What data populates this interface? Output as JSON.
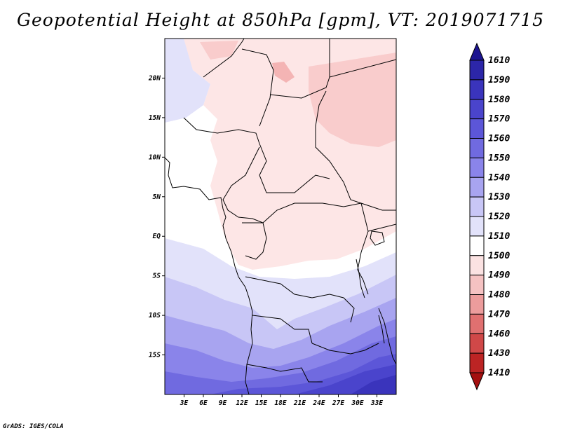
{
  "title": "Geopotential Height at 850hPa [gpm], VT: 2019071715",
  "credit": "GrADS: IGES/COLA",
  "map": {
    "lon_range": [
      0,
      36
    ],
    "lat_range": [
      -20,
      25
    ],
    "lat_ticks": [
      {
        "lat": 20,
        "label": "20N"
      },
      {
        "lat": 15,
        "label": "15N"
      },
      {
        "lat": 10,
        "label": "10N"
      },
      {
        "lat": 5,
        "label": "5N"
      },
      {
        "lat": 0,
        "label": "EQ"
      },
      {
        "lat": -5,
        "label": "5S"
      },
      {
        "lat": -10,
        "label": "10S"
      },
      {
        "lat": -15,
        "label": "15S"
      }
    ],
    "lon_ticks": [
      {
        "lon": 3,
        "label": "3E"
      },
      {
        "lon": 6,
        "label": "6E"
      },
      {
        "lon": 9,
        "label": "9E"
      },
      {
        "lon": 12,
        "label": "12E"
      },
      {
        "lon": 15,
        "label": "15E"
      },
      {
        "lon": 18,
        "label": "18E"
      },
      {
        "lon": 21,
        "label": "21E"
      },
      {
        "lon": 24,
        "label": "24E"
      },
      {
        "lon": 27,
        "label": "27E"
      },
      {
        "lon": 30,
        "label": "30E"
      },
      {
        "lon": 33,
        "label": "33E"
      }
    ]
  },
  "colorbar": {
    "levels": [
      "1610",
      "1590",
      "1580",
      "1570",
      "1560",
      "1550",
      "1540",
      "1530",
      "1520",
      "1510",
      "1500",
      "1490",
      "1480",
      "1470",
      "1460",
      "1430",
      "1410"
    ],
    "colors": [
      "#1c1490",
      "#2c26a8",
      "#3a34bc",
      "#4a44cc",
      "#5c56d8",
      "#706ae0",
      "#8a84ea",
      "#a8a4f0",
      "#c8c6f6",
      "#e2e2fa",
      "#ffffff",
      "#fbe2e2",
      "#f5c2c2",
      "#ec9c9c",
      "#e07070",
      "#d04848",
      "#bc2424",
      "#a41010"
    ],
    "levels_ascending": [
      1410,
      1430,
      1460,
      1470,
      1480,
      1490,
      1500,
      1510,
      1520,
      1530,
      1540,
      1550,
      1560,
      1570,
      1580,
      1590,
      1610
    ]
  }
}
